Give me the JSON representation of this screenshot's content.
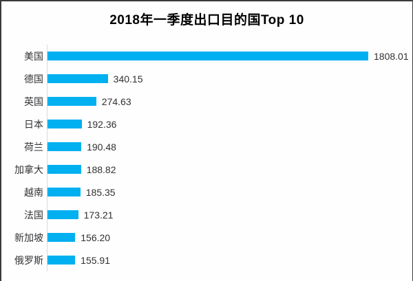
{
  "frame": {
    "background": "#fefefe",
    "border_color": "#3a3a3a"
  },
  "chart_data": {
    "type": "bar",
    "orientation": "horizontal",
    "title": "2018年一季度出口目的国Top 10",
    "categories": [
      "美国",
      "德国",
      "英国",
      "日本",
      "荷兰",
      "加拿大",
      "越南",
      "法国",
      "新加坡",
      "俄罗斯"
    ],
    "values": [
      1808.01,
      340.15,
      274.63,
      192.36,
      190.48,
      188.82,
      185.35,
      173.21,
      156.2,
      155.91
    ],
    "value_labels": [
      "1808.01",
      "340.15",
      "274.63",
      "192.36",
      "190.48",
      "188.82",
      "185.35",
      "173.21",
      "156.20",
      "155.91"
    ],
    "bar_color": "#00b0f0",
    "axis_line_color": "#d9d9d9",
    "label_color": "#333333",
    "value_color": "#303030",
    "xlim": [
      0,
      1808.01
    ],
    "grid": false,
    "legend": false,
    "xlabel": "",
    "ylabel": ""
  }
}
